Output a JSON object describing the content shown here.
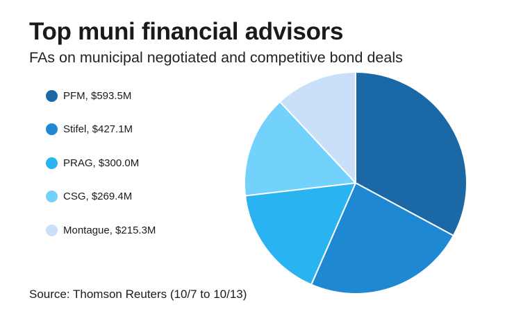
{
  "chart_data": {
    "type": "pie",
    "title": "Top muni financial advisors",
    "subtitle": "FAs on municipal negotiated and competitive bond deals",
    "source": "Source: Thomson Reuters (10/7 to 10/13)",
    "legend_position": "left",
    "slices": [
      {
        "label": "PFM, $593.5M",
        "name": "PFM",
        "value": 593.5,
        "color": "#1a68a5"
      },
      {
        "label": "Stifel, $427.1M",
        "name": "Stifel",
        "value": 427.1,
        "color": "#1f88d3"
      },
      {
        "label": "PRAG, $300.0M",
        "name": "PRAG",
        "value": 300.0,
        "color": "#29b4f1"
      },
      {
        "label": "CSG, $269.4M",
        "name": "CSG",
        "value": 269.4,
        "color": "#72d2fb"
      },
      {
        "label": "Montague, $215.3M",
        "name": "Montague",
        "value": 215.3,
        "color": "#cae0f8"
      }
    ]
  }
}
